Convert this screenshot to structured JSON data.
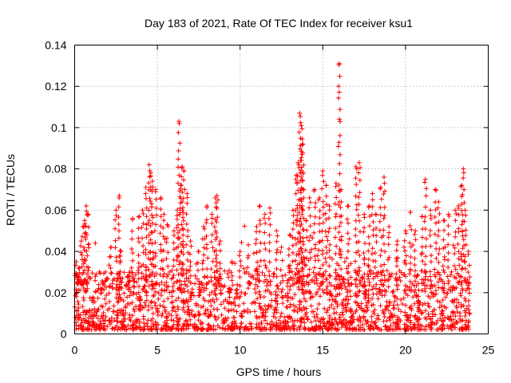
{
  "chart_data": {
    "type": "scatter",
    "title": "Day 183 of 2021, Rate Of TEC Index for receiver ksu1",
    "xlabel": "GPS time / hours",
    "ylabel": "ROTI / TECUs",
    "xlim": [
      0,
      25
    ],
    "ylim": [
      0,
      0.14
    ],
    "xticks": [
      0,
      5,
      10,
      15,
      20,
      25
    ],
    "xtick_labels": [
      "0",
      "5",
      "10",
      "15",
      "20",
      "25"
    ],
    "yticks": [
      0,
      0.02,
      0.04,
      0.06,
      0.08,
      0.1,
      0.12,
      0.14
    ],
    "ytick_labels": [
      "0",
      "0.02",
      "0.04",
      "0.06",
      "0.08",
      "0.1",
      "0.12",
      "0.14"
    ],
    "grid": true,
    "marker": "plus",
    "color": "#ff0000",
    "series": [
      {
        "name": "ROTI",
        "points": [
          [
            0.1,
            0.035
          ],
          [
            0.2,
            0.028
          ],
          [
            0.3,
            0.032
          ],
          [
            0.4,
            0.045
          ],
          [
            0.5,
            0.052
          ],
          [
            0.6,
            0.055
          ],
          [
            0.7,
            0.062
          ],
          [
            0.8,
            0.058
          ],
          [
            1.5,
            0.03
          ],
          [
            1.7,
            0.025
          ],
          [
            2.2,
            0.042
          ],
          [
            2.5,
            0.06
          ],
          [
            2.7,
            0.067
          ],
          [
            2.8,
            0.04
          ],
          [
            3.2,
            0.028
          ],
          [
            3.5,
            0.056
          ],
          [
            3.9,
            0.057
          ],
          [
            4.1,
            0.06
          ],
          [
            4.3,
            0.071
          ],
          [
            4.5,
            0.082
          ],
          [
            4.6,
            0.078
          ],
          [
            4.7,
            0.074
          ],
          [
            4.9,
            0.07
          ],
          [
            5.2,
            0.066
          ],
          [
            5.4,
            0.058
          ],
          [
            5.6,
            0.053
          ],
          [
            6.0,
            0.05
          ],
          [
            6.2,
            0.06
          ],
          [
            6.3,
            0.103
          ],
          [
            6.4,
            0.072
          ],
          [
            6.5,
            0.081
          ],
          [
            6.6,
            0.079
          ],
          [
            6.8,
            0.068
          ],
          [
            7.0,
            0.045
          ],
          [
            7.5,
            0.04
          ],
          [
            7.8,
            0.052
          ],
          [
            8.0,
            0.062
          ],
          [
            8.3,
            0.058
          ],
          [
            8.5,
            0.066
          ],
          [
            8.6,
            0.067
          ],
          [
            8.8,
            0.045
          ],
          [
            9.5,
            0.035
          ],
          [
            10.0,
            0.04
          ],
          [
            10.5,
            0.038
          ],
          [
            11.0,
            0.052
          ],
          [
            11.2,
            0.062
          ],
          [
            11.5,
            0.058
          ],
          [
            11.8,
            0.061
          ],
          [
            12.2,
            0.05
          ],
          [
            12.5,
            0.042
          ],
          [
            13.0,
            0.048
          ],
          [
            13.2,
            0.06
          ],
          [
            13.4,
            0.077
          ],
          [
            13.5,
            0.083
          ],
          [
            13.6,
            0.107
          ],
          [
            13.7,
            0.101
          ],
          [
            13.75,
            0.087
          ],
          [
            13.8,
            0.092
          ],
          [
            14.0,
            0.055
          ],
          [
            14.2,
            0.066
          ],
          [
            14.5,
            0.07
          ],
          [
            14.8,
            0.066
          ],
          [
            15.0,
            0.079
          ],
          [
            15.2,
            0.072
          ],
          [
            15.4,
            0.062
          ],
          [
            15.8,
            0.073
          ],
          [
            16.0,
            0.131
          ],
          [
            16.1,
            0.07
          ],
          [
            16.5,
            0.062
          ],
          [
            17.0,
            0.081
          ],
          [
            17.2,
            0.083
          ],
          [
            17.5,
            0.058
          ],
          [
            17.8,
            0.062
          ],
          [
            18.0,
            0.068
          ],
          [
            18.2,
            0.058
          ],
          [
            18.5,
            0.071
          ],
          [
            18.7,
            0.076
          ],
          [
            19.0,
            0.052
          ],
          [
            19.5,
            0.045
          ],
          [
            20.0,
            0.05
          ],
          [
            20.3,
            0.059
          ],
          [
            20.6,
            0.05
          ],
          [
            21.0,
            0.057
          ],
          [
            21.2,
            0.075
          ],
          [
            21.5,
            0.06
          ],
          [
            21.8,
            0.07
          ],
          [
            22.0,
            0.064
          ],
          [
            22.3,
            0.055
          ],
          [
            22.6,
            0.058
          ],
          [
            23.0,
            0.06
          ],
          [
            23.2,
            0.062
          ],
          [
            23.4,
            0.072
          ],
          [
            23.5,
            0.08
          ],
          [
            23.6,
            0.06
          ],
          [
            23.8,
            0.04
          ]
        ]
      }
    ],
    "baseline_density": {
      "start_hour": 0,
      "end_hour": 23.9,
      "typical_min": 0.002,
      "typical_max": 0.02
    }
  }
}
